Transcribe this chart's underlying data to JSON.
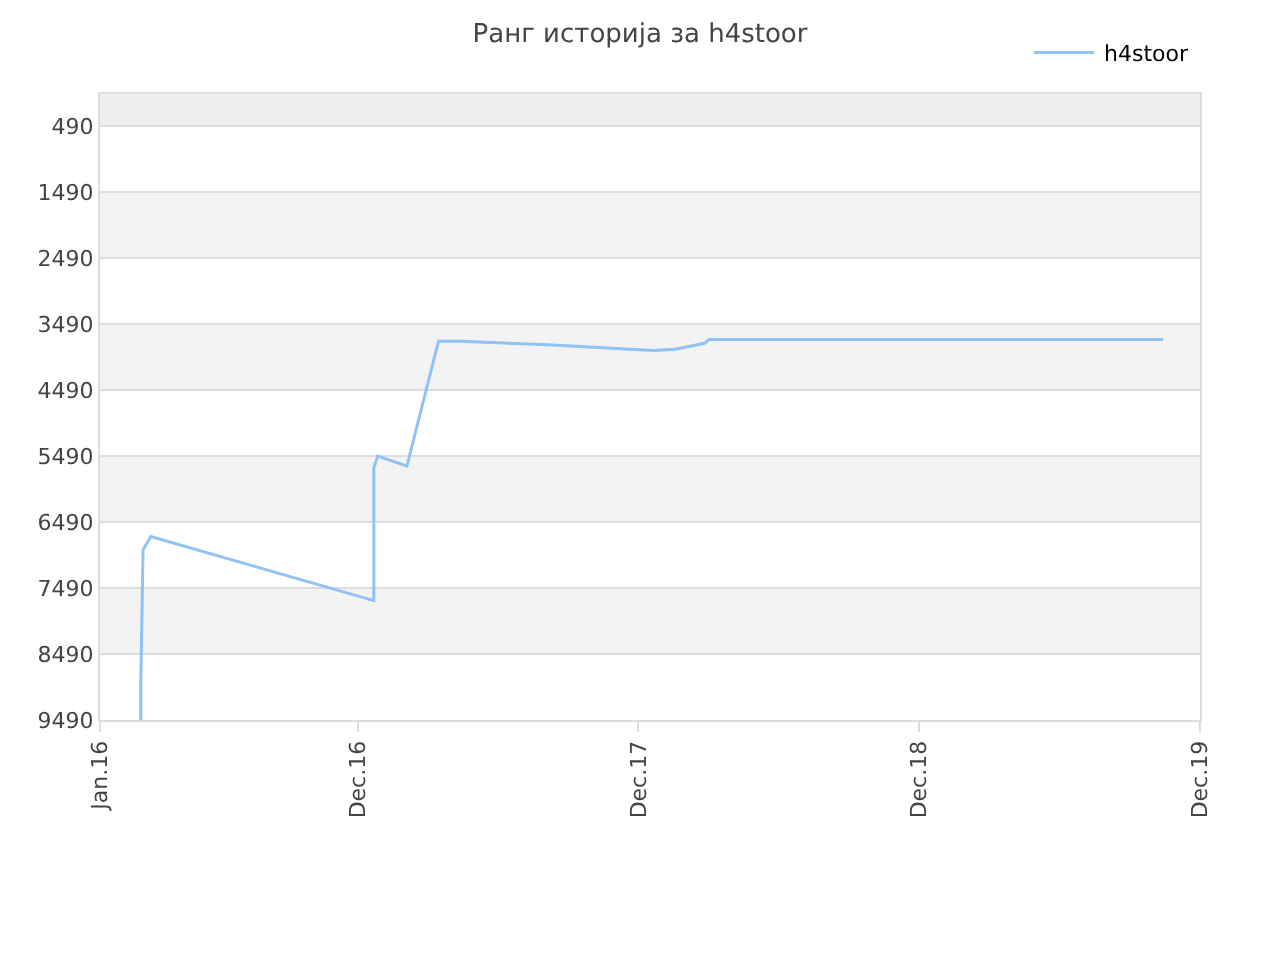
{
  "chart_data": {
    "type": "line",
    "title": "Ранг историја за h4stoor",
    "x": [
      "2016-02-23",
      "2016-02-23",
      "2016-02-26",
      "2016-03-07",
      "2016-12-22",
      "2016-12-22",
      "2016-12-27",
      "2017-02-03",
      "2017-03-16",
      "2017-04-14",
      "2017-08-05",
      "2017-11-20",
      "2017-12-22",
      "2018-01-18",
      "2018-02-25",
      "2018-03-03",
      "2019-10-14"
    ],
    "series": [
      {
        "name": "h4stoor",
        "color": "#8fc3f5",
        "values": [
          9490,
          8950,
          6910,
          6710,
          7680,
          5670,
          5490,
          5640,
          3750,
          3750,
          3800,
          3870,
          3890,
          3870,
          3780,
          3720,
          3720
        ]
      }
    ],
    "xlim": [
      "2016-01-01",
      "2019-12-01"
    ],
    "xticks": [
      {
        "value": "2016-01-01",
        "label": "Jan.16"
      },
      {
        "value": "2016-12-01",
        "label": "Dec.16"
      },
      {
        "value": "2017-12-01",
        "label": "Dec.17"
      },
      {
        "value": "2018-12-01",
        "label": "Dec.18"
      },
      {
        "value": "2019-12-01",
        "label": "Dec.19"
      }
    ],
    "ylim": [
      9490,
      0
    ],
    "yticks": [
      490,
      1490,
      2490,
      3490,
      4490,
      5490,
      6490,
      7490,
      8490,
      9490
    ],
    "bands": [
      {
        "axis": "y",
        "from": 0,
        "to": 490,
        "color": "#eeeeee"
      },
      {
        "axis": "y",
        "from": 1490,
        "to": 2490,
        "color": "#f3f3f3"
      },
      {
        "axis": "y",
        "from": 3490,
        "to": 4490,
        "color": "#f3f3f3"
      },
      {
        "axis": "y",
        "from": 5490,
        "to": 6490,
        "color": "#f3f3f3"
      },
      {
        "axis": "y",
        "from": 7490,
        "to": 8490,
        "color": "#f3f3f3"
      }
    ],
    "grid": "y",
    "legend": "top right",
    "marker": "none",
    "line_style": "solid"
  }
}
